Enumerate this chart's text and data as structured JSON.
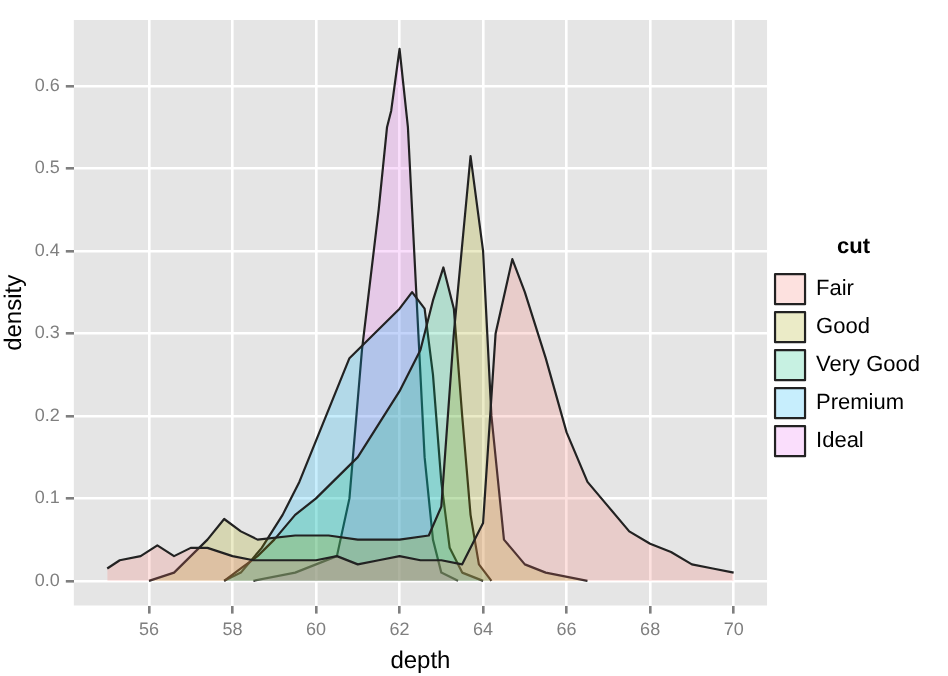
{
  "chart_data": {
    "type": "area",
    "xlabel": "depth",
    "ylabel": "density",
    "legend_title": "cut",
    "legend": "right",
    "grid": true,
    "xlim": [
      54.2,
      70.8
    ],
    "ylim": [
      -0.03,
      0.68
    ],
    "xticks": [
      56,
      58,
      60,
      62,
      64,
      66,
      68,
      70
    ],
    "yticks": [
      {
        "value": 0,
        "label": "0.0"
      },
      {
        "value": 0.1,
        "label": "0.1"
      },
      {
        "value": 0.2,
        "label": "0.2"
      },
      {
        "value": 0.3,
        "label": "0.3"
      },
      {
        "value": 0.4,
        "label": "0.4"
      },
      {
        "value": 0.5,
        "label": "0.5"
      },
      {
        "value": 0.6,
        "label": "0.6"
      }
    ],
    "series": [
      {
        "name": "Fair",
        "color": "#f8766d",
        "x": [
          55,
          55.3,
          55.8,
          56.2,
          56.6,
          57,
          57.4,
          58,
          58.5,
          59,
          60,
          60.5,
          61,
          61.5,
          62,
          62.5,
          63,
          63.5,
          64,
          64.3,
          64.7,
          65,
          65.5,
          66,
          66.5,
          67,
          67.5,
          68,
          68.5,
          69,
          69.5,
          70
        ],
        "values": [
          0.015,
          0.025,
          0.03,
          0.043,
          0.03,
          0.04,
          0.04,
          0.03,
          0.025,
          0.025,
          0.025,
          0.03,
          0.02,
          0.025,
          0.03,
          0.025,
          0.025,
          0.02,
          0.07,
          0.3,
          0.39,
          0.35,
          0.27,
          0.18,
          0.12,
          0.09,
          0.06,
          0.045,
          0.035,
          0.02,
          0.015,
          0.01
        ]
      },
      {
        "name": "Good",
        "color": "#a3a500",
        "x": [
          56,
          56.6,
          57,
          57.4,
          57.8,
          58.2,
          58.6,
          59.5,
          60.3,
          61,
          62,
          62.7,
          63,
          63.3,
          63.7,
          64,
          64.2,
          64.5,
          65,
          65.5,
          66.5
        ],
        "values": [
          0,
          0.01,
          0.03,
          0.05,
          0.075,
          0.06,
          0.05,
          0.055,
          0.055,
          0.05,
          0.05,
          0.055,
          0.09,
          0.3,
          0.515,
          0.4,
          0.2,
          0.05,
          0.02,
          0.01,
          0
        ]
      },
      {
        "name": "Very Good",
        "color": "#00bf7d",
        "x": [
          57.8,
          58.2,
          58.6,
          59,
          59.5,
          60,
          60.4,
          61,
          61.5,
          62,
          62.5,
          62.8,
          63.05,
          63.3,
          63.5,
          63.7,
          63.9,
          64.2
        ],
        "values": [
          0,
          0.015,
          0.03,
          0.05,
          0.08,
          0.1,
          0.12,
          0.15,
          0.19,
          0.23,
          0.28,
          0.34,
          0.38,
          0.33,
          0.2,
          0.08,
          0.02,
          0
        ]
      },
      {
        "name": "Premium",
        "color": "#00b0f6",
        "x": [
          57.8,
          58.2,
          58.7,
          59.2,
          59.6,
          60,
          60.4,
          60.8,
          61.2,
          61.6,
          62,
          62.3,
          62.6,
          62.8,
          63,
          63.2,
          63.5,
          64
        ],
        "values": [
          0,
          0.01,
          0.04,
          0.08,
          0.12,
          0.17,
          0.22,
          0.27,
          0.29,
          0.31,
          0.33,
          0.35,
          0.33,
          0.25,
          0.12,
          0.04,
          0.01,
          0
        ]
      },
      {
        "name": "Ideal",
        "color": "#e76bf3",
        "x": [
          58.5,
          59.5,
          60.5,
          60.8,
          61.1,
          61.5,
          61.7,
          61.8,
          62,
          62.2,
          62.4,
          62.6,
          62.8,
          63,
          63.4
        ],
        "values": [
          0,
          0.01,
          0.03,
          0.1,
          0.28,
          0.45,
          0.55,
          0.57,
          0.645,
          0.55,
          0.35,
          0.15,
          0.05,
          0.01,
          0
        ]
      }
    ]
  }
}
